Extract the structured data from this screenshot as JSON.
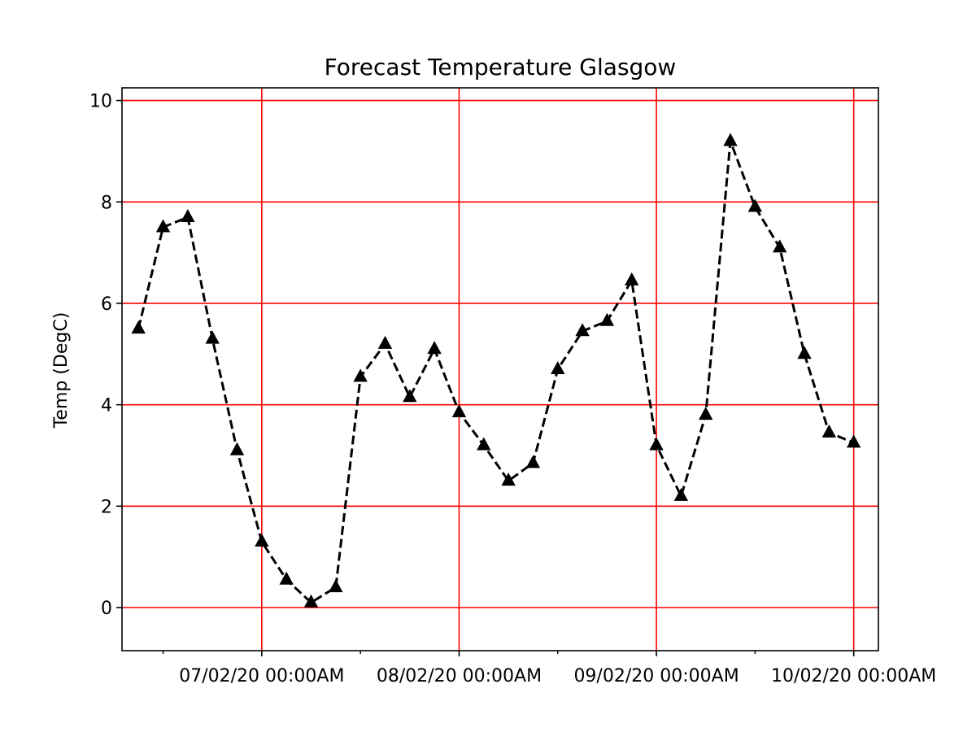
{
  "chart_data": {
    "type": "line",
    "title": "Forecast Temperature Glasgow",
    "xlabel": "",
    "ylabel": "Temp (DegC)",
    "ylim": [
      -0.85,
      10.25
    ],
    "yticks": [
      0,
      2,
      4,
      6,
      8,
      10
    ],
    "xlim": [
      "06/02/20 07:00AM",
      "10/02/20 03:00AM"
    ],
    "x_major_ticks": [
      {
        "x": "07/02/20 00:00",
        "label": "07/02/20 00:00AM"
      },
      {
        "x": "08/02/20 00:00",
        "label": "08/02/20 00:00AM"
      },
      {
        "x": "09/02/20 00:00",
        "label": "09/02/20 00:00AM"
      },
      {
        "x": "10/02/20 00:00",
        "label": "10/02/20 00:00AM"
      }
    ],
    "x_minor_ticks": [
      "06/02/20 12:00",
      "07/02/20 12:00",
      "08/02/20 12:00",
      "09/02/20 12:00"
    ],
    "grid": true,
    "grid_color": "#ff0000",
    "line_color": "#000000",
    "line_style": "dashed",
    "marker": "triangle-up",
    "x": [
      "06/02/20 09:00",
      "06/02/20 12:00",
      "06/02/20 15:00",
      "06/02/20 18:00",
      "06/02/20 21:00",
      "07/02/20 00:00",
      "07/02/20 03:00",
      "07/02/20 06:00",
      "07/02/20 09:00",
      "07/02/20 12:00",
      "07/02/20 15:00",
      "07/02/20 18:00",
      "07/02/20 21:00",
      "08/02/20 00:00",
      "08/02/20 03:00",
      "08/02/20 06:00",
      "08/02/20 09:00",
      "08/02/20 12:00",
      "08/02/20 15:00",
      "08/02/20 18:00",
      "08/02/20 21:00",
      "09/02/20 00:00",
      "09/02/20 03:00",
      "09/02/20 06:00",
      "09/02/20 09:00",
      "09/02/20 12:00",
      "09/02/20 15:00",
      "09/02/20 18:00",
      "09/02/20 21:00",
      "10/02/20 00:00"
    ],
    "series": [
      {
        "values": [
          5.5,
          7.5,
          7.7,
          5.3,
          3.1,
          1.3,
          0.55,
          0.1,
          0.4,
          4.55,
          5.2,
          4.15,
          5.1,
          3.85,
          3.2,
          2.5,
          2.85,
          4.7,
          5.45,
          5.65,
          6.45,
          3.2,
          2.2,
          3.8,
          9.2,
          7.9,
          7.1,
          5.0,
          3.45,
          3.25
        ]
      }
    ]
  }
}
